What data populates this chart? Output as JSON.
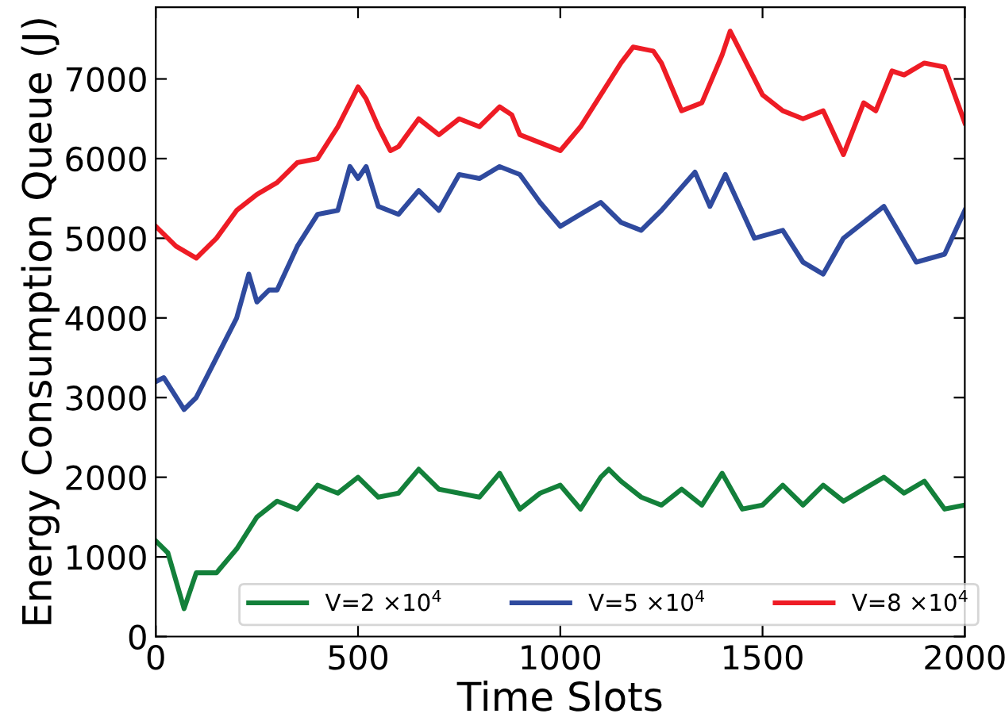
{
  "chart_data": {
    "type": "line",
    "xlabel": "Time Slots",
    "ylabel": "Energy Consumption Queue (J)",
    "xlim": [
      0,
      2000
    ],
    "ylim": [
      0,
      7900
    ],
    "xticks": [
      0,
      500,
      1000,
      1500,
      2000
    ],
    "yticks": [
      0,
      1000,
      2000,
      3000,
      4000,
      5000,
      6000,
      7000
    ],
    "grid": false,
    "legend": "bottom",
    "marker": "none",
    "line_style": "solid",
    "series": [
      {
        "name": "V=2 ×10$^{4}$",
        "color": "#13803a",
        "x": [
          0,
          30,
          70,
          100,
          150,
          200,
          250,
          300,
          350,
          400,
          450,
          500,
          550,
          600,
          650,
          700,
          750,
          800,
          850,
          900,
          950,
          1000,
          1050,
          1100,
          1120,
          1150,
          1200,
          1250,
          1300,
          1350,
          1400,
          1450,
          1500,
          1550,
          1600,
          1650,
          1700,
          1750,
          1800,
          1850,
          1900,
          1950,
          2000
        ],
        "values": [
          1200,
          1050,
          350,
          800,
          800,
          1100,
          1500,
          1700,
          1600,
          1900,
          1800,
          2000,
          1750,
          1800,
          2100,
          1850,
          1800,
          1750,
          2050,
          1600,
          1800,
          1900,
          1600,
          2000,
          2100,
          1950,
          1750,
          1650,
          1850,
          1650,
          2050,
          1600,
          1650,
          1900,
          1650,
          1900,
          1700,
          1850,
          2000,
          1800,
          1950,
          1600,
          1650
        ]
      },
      {
        "name": "V=5 ×10$^{4}$",
        "color": "#2f4a9e",
        "x": [
          0,
          20,
          70,
          100,
          150,
          200,
          230,
          250,
          280,
          300,
          350,
          400,
          450,
          480,
          500,
          520,
          550,
          600,
          650,
          700,
          750,
          800,
          850,
          900,
          950,
          1000,
          1050,
          1100,
          1150,
          1200,
          1250,
          1333,
          1370,
          1408,
          1480,
          1550,
          1600,
          1650,
          1700,
          1800,
          1880,
          1950,
          2000
        ],
        "values": [
          3200,
          3250,
          2850,
          3000,
          3500,
          4000,
          4550,
          4200,
          4350,
          4350,
          4900,
          5300,
          5350,
          5900,
          5750,
          5900,
          5400,
          5300,
          5600,
          5350,
          5800,
          5750,
          5900,
          5800,
          5450,
          5150,
          5300,
          5450,
          5200,
          5100,
          5350,
          5830,
          5400,
          5800,
          5000,
          5100,
          4700,
          4550,
          5000,
          5400,
          4700,
          4800,
          5350
        ]
      },
      {
        "name": "V=8 ×10$^{4}$",
        "color": "#ee1c25",
        "x": [
          0,
          50,
          100,
          150,
          200,
          250,
          300,
          350,
          400,
          450,
          500,
          520,
          550,
          580,
          600,
          650,
          700,
          750,
          800,
          850,
          880,
          900,
          950,
          1000,
          1050,
          1100,
          1150,
          1180,
          1230,
          1250,
          1300,
          1350,
          1400,
          1420,
          1450,
          1500,
          1550,
          1600,
          1650,
          1700,
          1750,
          1780,
          1820,
          1850,
          1900,
          1950,
          2000
        ],
        "values": [
          5150,
          4900,
          4750,
          5000,
          5350,
          5550,
          5700,
          5950,
          6000,
          6400,
          6900,
          6750,
          6400,
          6100,
          6150,
          6500,
          6300,
          6500,
          6400,
          6650,
          6550,
          6300,
          6200,
          6100,
          6400,
          6800,
          7200,
          7400,
          7350,
          7200,
          6600,
          6700,
          7300,
          7600,
          7300,
          6800,
          6600,
          6500,
          6600,
          6050,
          6700,
          6600,
          7100,
          7050,
          7200,
          7150,
          6450
        ]
      }
    ]
  }
}
